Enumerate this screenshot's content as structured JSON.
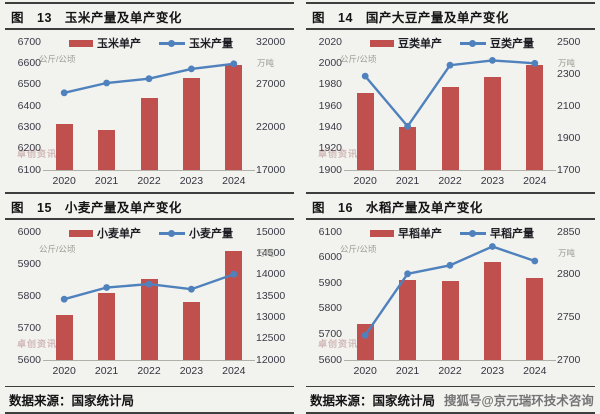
{
  "watermark": "卓创资讯",
  "colors": {
    "bar_red": "#c0504d",
    "line_blue": "#4f81bd",
    "axis_text": "#3a3a46",
    "border_dark": "#3e3e3e"
  },
  "layout": {
    "columns": [
      {
        "chart_ids": [
          0,
          2
        ],
        "footer": "数据来源：国家统计局",
        "footer_extra": ""
      },
      {
        "chart_ids": [
          1,
          3
        ],
        "footer": "数据来源：国家统计局",
        "footer_extra": "搜狐号@京元瑞环技术咨询"
      }
    ]
  },
  "chart_data": [
    {
      "type": "bar+line",
      "title": "图　13　玉米产量及单产变化",
      "categories": [
        "2020",
        "2021",
        "2022",
        "2023",
        "2024"
      ],
      "series": [
        {
          "name": "玉米单产",
          "type": "bar",
          "axis": "left",
          "values": [
            6315,
            6288,
            6437,
            6530,
            6590
          ]
        },
        {
          "name": "玉米产量",
          "type": "line",
          "axis": "right",
          "values": [
            26050,
            27200,
            27700,
            28850,
            29450
          ]
        }
      ],
      "left_axis": {
        "label": "公斤/公顷",
        "min": 6100,
        "max": 6700,
        "ticks": [
          6700,
          6600,
          6500,
          6400,
          6300,
          6200,
          6100
        ]
      },
      "right_axis": {
        "label": "万吨",
        "min": 17000,
        "max": 32000,
        "ticks": [
          32000,
          27000,
          22000,
          17000
        ]
      },
      "grid": false,
      "legend_position": "top"
    },
    {
      "type": "bar+line",
      "title": "图　14　国产大豆产量及单产变化",
      "categories": [
        "2020",
        "2021",
        "2022",
        "2023",
        "2024"
      ],
      "series": [
        {
          "name": "豆类单产",
          "type": "bar",
          "axis": "left",
          "values": [
            1972,
            1940,
            1978,
            1987,
            1998
          ]
        },
        {
          "name": "豆类产量",
          "type": "line",
          "axis": "right",
          "values": [
            2287,
            1973,
            2355,
            2385,
            2367
          ]
        }
      ],
      "left_axis": {
        "label": "公斤/公顷",
        "min": 1900,
        "max": 2020,
        "ticks": [
          2020,
          2000,
          1980,
          1960,
          1940,
          1920,
          1900
        ]
      },
      "right_axis": {
        "label": "万吨",
        "min": 1700,
        "max": 2500,
        "ticks": [
          2500,
          2300,
          2100,
          1900,
          1700
        ]
      },
      "grid": false,
      "legend_position": "top"
    },
    {
      "type": "bar+line",
      "title": "图　15　小麦产量及单产变化",
      "categories": [
        "2020",
        "2021",
        "2022",
        "2023",
        "2024"
      ],
      "series": [
        {
          "name": "小麦单产",
          "type": "bar",
          "axis": "left",
          "values": [
            5740,
            5808,
            5853,
            5780,
            5940
          ]
        },
        {
          "name": "小麦产量",
          "type": "line",
          "axis": "right",
          "values": [
            13425,
            13700,
            13780,
            13660,
            14010
          ]
        }
      ],
      "left_axis": {
        "label": "公斤/公顷",
        "min": 5600,
        "max": 6000,
        "ticks": [
          6000,
          5900,
          5800,
          5700,
          5600
        ]
      },
      "right_axis": {
        "label": "万吨",
        "min": 12000,
        "max": 15000,
        "ticks": [
          15000,
          14500,
          14000,
          13500,
          13000,
          12500,
          12000
        ]
      },
      "grid": false,
      "legend_position": "top"
    },
    {
      "type": "bar+line",
      "title": "图　16　水稻产量及单产变化",
      "categories": [
        "2020",
        "2021",
        "2022",
        "2023",
        "2024"
      ],
      "series": [
        {
          "name": "早稻单产",
          "type": "bar",
          "axis": "left",
          "values": [
            5741,
            5914,
            5910,
            5984,
            5919
          ]
        },
        {
          "name": "早稻产量",
          "type": "line",
          "axis": "right",
          "values": [
            2729,
            2801,
            2811,
            2833,
            2816
          ]
        }
      ],
      "left_axis": {
        "label": "公斤/公顷",
        "min": 5600,
        "max": 6100,
        "ticks": [
          6100,
          6000,
          5900,
          5800,
          5700,
          5600
        ]
      },
      "right_axis": {
        "label": "万吨",
        "min": 2700,
        "max": 2850,
        "ticks": [
          2850,
          2800,
          2750,
          2700
        ]
      },
      "grid": false,
      "legend_position": "top"
    }
  ]
}
